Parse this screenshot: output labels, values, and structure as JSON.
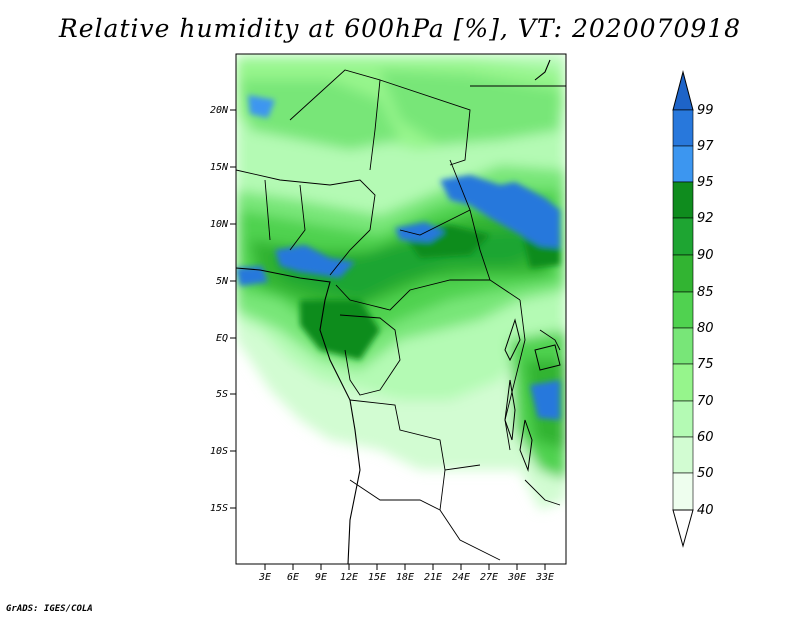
{
  "title": "Relative humidity at 600hPa [%], VT: 2020070918",
  "credit": "GrADS: IGES/COLA",
  "map": {
    "lat_ticks": [
      "20N",
      "15N",
      "10N",
      "5N",
      "EQ",
      "5S",
      "10S",
      "15S"
    ],
    "lon_ticks": [
      "3E",
      "6E",
      "9E",
      "12E",
      "15E",
      "18E",
      "21E",
      "24E",
      "27E",
      "30E",
      "33E"
    ]
  },
  "colorbar": {
    "labels": [
      "99",
      "97",
      "95",
      "92",
      "90",
      "85",
      "80",
      "75",
      "70",
      "60",
      "50",
      "40"
    ],
    "colors": [
      "#1e64c8",
      "#2878dc",
      "#3c96f0",
      "#0f8c1e",
      "#1ea532",
      "#32b432",
      "#50d250",
      "#78e678",
      "#96f58c",
      "#b4fab4",
      "#d2fcd2",
      "#eefeee"
    ]
  },
  "colors": {
    "land_wet": "#50d250",
    "land_moist": "#96f58c",
    "land_dry": "#d2fcd2",
    "very_wet": "#0f8c1e",
    "saturated": "#2878dc"
  }
}
